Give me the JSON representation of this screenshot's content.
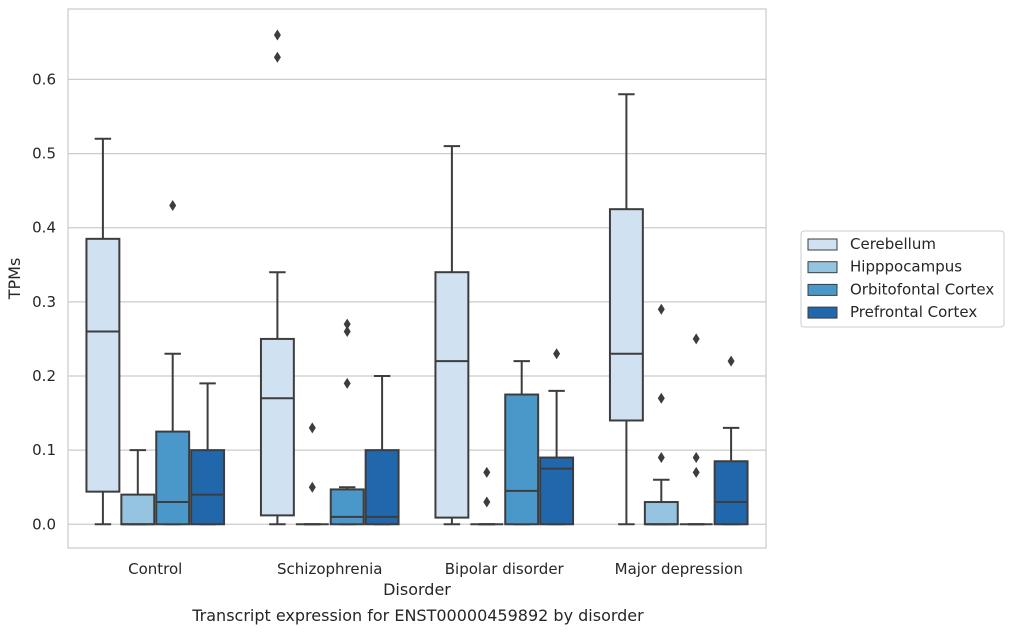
{
  "caption": "Transcript expression for ENST00000459892 by disorder",
  "chart_data": {
    "type": "box",
    "xlabel": "Disorder",
    "ylabel": "TPMs",
    "ylim": [
      -0.032,
      0.695
    ],
    "yticks": [
      0.0,
      0.1,
      0.2,
      0.3,
      0.4,
      0.5,
      0.6
    ],
    "ytick_labels": [
      "0.0",
      "0.1",
      "0.2",
      "0.3",
      "0.4",
      "0.5",
      "0.6"
    ],
    "grid": "horizontal",
    "legend_position": "right",
    "categories": [
      "Control",
      "Schizophrenia",
      "Bipolar disorder",
      "Major depression"
    ],
    "series": [
      {
        "name": "Cerebellum",
        "color": "#d0e1f2",
        "boxes": [
          {
            "whisker_low": 0.0,
            "q1": 0.044,
            "median": 0.26,
            "q3": 0.385,
            "whisker_high": 0.52,
            "outliers": []
          },
          {
            "whisker_low": 0.0,
            "q1": 0.012,
            "median": 0.17,
            "q3": 0.25,
            "whisker_high": 0.34,
            "outliers": [
              0.63,
              0.66
            ]
          },
          {
            "whisker_low": 0.0,
            "q1": 0.009,
            "median": 0.22,
            "q3": 0.34,
            "whisker_high": 0.51,
            "outliers": []
          },
          {
            "whisker_low": 0.0,
            "q1": 0.14,
            "median": 0.23,
            "q3": 0.425,
            "whisker_high": 0.58,
            "outliers": []
          }
        ]
      },
      {
        "name": "Hipppocampus",
        "color": "#94c4df",
        "boxes": [
          {
            "whisker_low": 0.0,
            "q1": 0.0,
            "median": 0.0,
            "q3": 0.04,
            "whisker_high": 0.1,
            "outliers": []
          },
          {
            "whisker_low": 0.0,
            "q1": 0.0,
            "median": 0.0,
            "q3": 0.0,
            "whisker_high": 0.0,
            "outliers": [
              0.05,
              0.13
            ]
          },
          {
            "whisker_low": 0.0,
            "q1": 0.0,
            "median": 0.0,
            "q3": 0.0,
            "whisker_high": 0.0,
            "outliers": [
              0.03,
              0.07
            ]
          },
          {
            "whisker_low": 0.0,
            "q1": 0.0,
            "median": 0.0,
            "q3": 0.03,
            "whisker_high": 0.06,
            "outliers": [
              0.09,
              0.17,
              0.29
            ]
          }
        ]
      },
      {
        "name": "Orbitofontal Cortex",
        "color": "#4a98c9",
        "boxes": [
          {
            "whisker_low": 0.0,
            "q1": 0.0,
            "median": 0.03,
            "q3": 0.125,
            "whisker_high": 0.23,
            "outliers": [
              0.43
            ]
          },
          {
            "whisker_low": 0.0,
            "q1": 0.0,
            "median": 0.01,
            "q3": 0.047,
            "whisker_high": 0.05,
            "outliers": [
              0.19,
              0.26,
              0.27
            ]
          },
          {
            "whisker_low": 0.0,
            "q1": 0.0,
            "median": 0.045,
            "q3": 0.175,
            "whisker_high": 0.22,
            "outliers": []
          },
          {
            "whisker_low": 0.0,
            "q1": 0.0,
            "median": 0.0,
            "q3": 0.0,
            "whisker_high": 0.0,
            "outliers": [
              0.07,
              0.09,
              0.25
            ]
          }
        ]
      },
      {
        "name": "Prefrontal Cortex",
        "color": "#2167ac",
        "boxes": [
          {
            "whisker_low": 0.0,
            "q1": 0.0,
            "median": 0.04,
            "q3": 0.1,
            "whisker_high": 0.19,
            "outliers": []
          },
          {
            "whisker_low": 0.0,
            "q1": 0.0,
            "median": 0.01,
            "q3": 0.1,
            "whisker_high": 0.2,
            "outliers": []
          },
          {
            "whisker_low": 0.0,
            "q1": 0.0,
            "median": 0.075,
            "q3": 0.09,
            "whisker_high": 0.18,
            "outliers": [
              0.23
            ]
          },
          {
            "whisker_low": 0.0,
            "q1": 0.0,
            "median": 0.03,
            "q3": 0.085,
            "whisker_high": 0.13,
            "outliers": [
              0.22
            ]
          }
        ]
      }
    ]
  }
}
